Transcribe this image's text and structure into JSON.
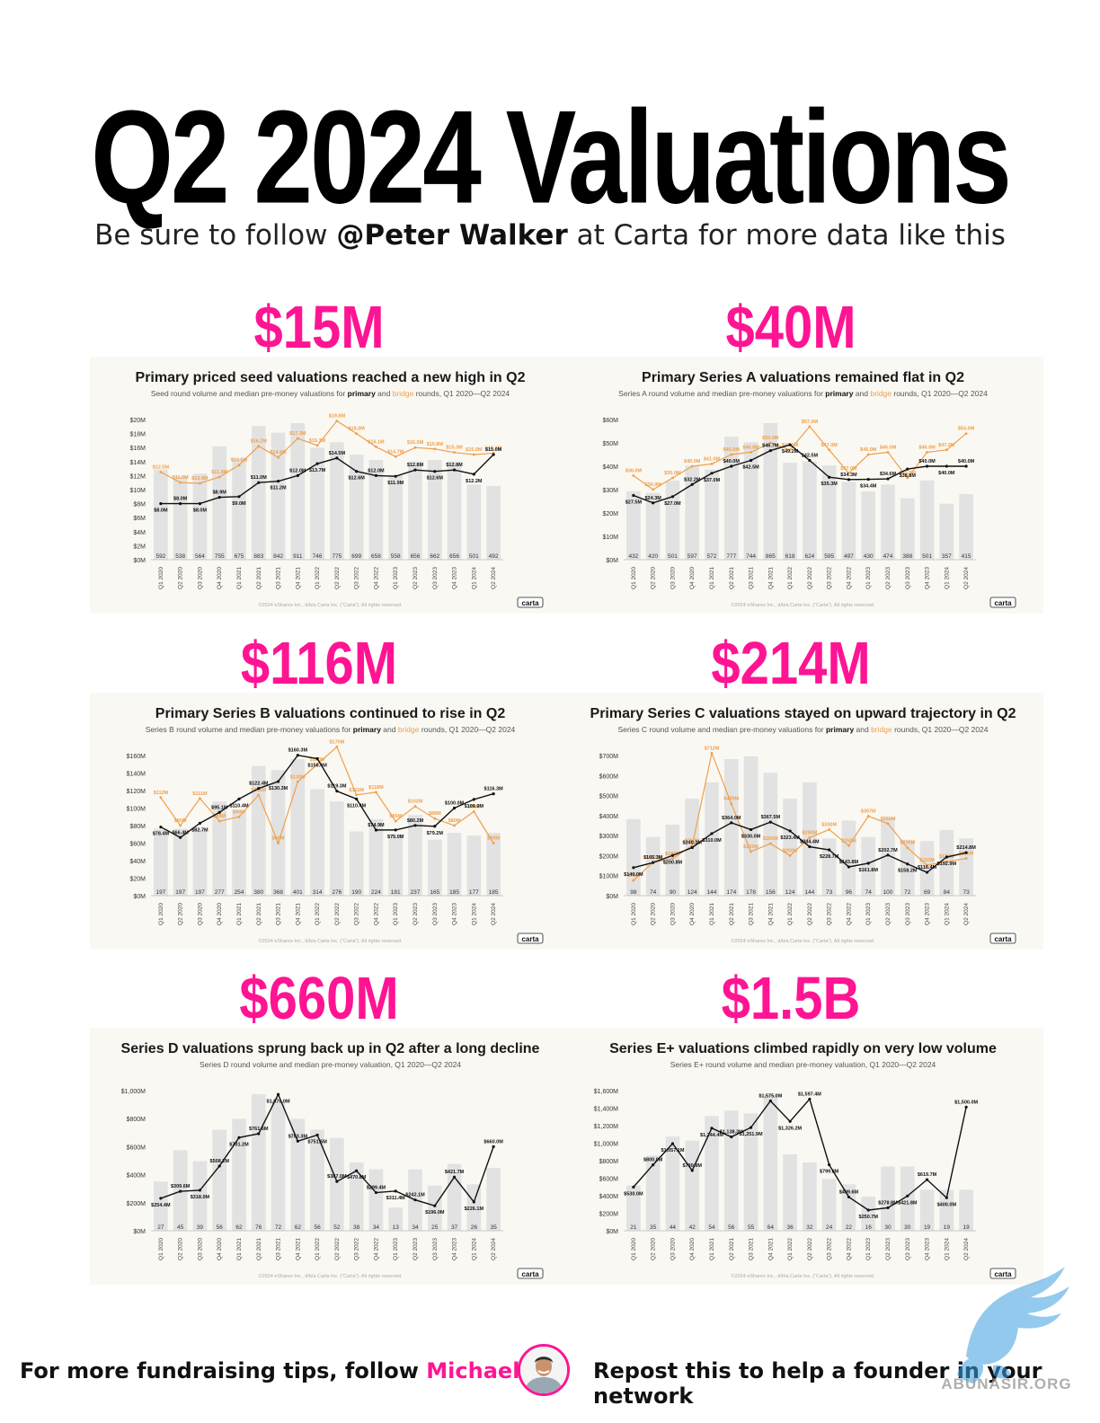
{
  "page": {
    "title": "Q2 2024 Valuations",
    "subtitle_pre": "Be sure to follow ",
    "subtitle_handle": "@Peter Walker",
    "subtitle_post": " at Carta for more data like this",
    "footer_left_pre": "For more fundraising tips, follow ",
    "footer_left_name": "Michael Ho",
    "footer_right": "Repost this to help a founder in your network",
    "watermark_text": "ABUNASIR.ORG",
    "colors": {
      "pink": "#ff1493",
      "primary_line": "#111111",
      "bridge_line": "#f0a04b",
      "bars": "#e2e2e2",
      "card": "#faf8f3"
    }
  },
  "chart_data": [
    {
      "type": "bar",
      "headline": "$15M",
      "title": "Primary priced seed valuations reached a new high in Q2",
      "subtitle_pre": "Seed round volume and median pre-money valuations for ",
      "subtitle_primary": "primary",
      "subtitle_and": " and ",
      "subtitle_bridge": "bridge",
      "subtitle_post": " rounds, Q1 2020—Q2 2024",
      "footer": "©2024 eShares Inc., d/b/a Carta Inc. (“Carta”). All rights reserved.",
      "logo": "carta",
      "categories": [
        "Q1 2020",
        "Q2 2020",
        "Q3 2020",
        "Q4 2020",
        "Q1 2021",
        "Q2 2021",
        "Q3 2021",
        "Q4 2021",
        "Q1 2022",
        "Q2 2022",
        "Q3 2022",
        "Q4 2022",
        "Q1 2023",
        "Q2 2023",
        "Q3 2023",
        "Q4 2023",
        "Q1 2024",
        "Q2 2024"
      ],
      "counts": [
        "592",
        "538",
        "564",
        "755",
        "675",
        "883",
        "842",
        "911",
        "746",
        "775",
        "699",
        "658",
        "558",
        "656",
        "662",
        "656",
        "501",
        "492"
      ],
      "yticks": [
        "$0M",
        "$2M",
        "$4M",
        "$6M",
        "$8M",
        "$10M",
        "$12M",
        "$14M",
        "$16M",
        "$18M",
        "$20M"
      ],
      "ylim": [
        0,
        20
      ],
      "primary": [
        8.0,
        8.0,
        8.0,
        8.9,
        9.0,
        11.0,
        11.2,
        12.0,
        13.7,
        14.5,
        12.6,
        12.0,
        11.9,
        12.8,
        12.6,
        12.8,
        12.2,
        15.0
      ],
      "primary_labels": [
        "$8.0M",
        "$8.0M",
        "$8.0M",
        "$8.9M",
        "$9.0M",
        "$11.0M",
        "$11.2M",
        "$12.0M",
        "$13.7M",
        "$14.5M",
        "$12.6M",
        "$12.0M",
        "$11.9M",
        "$12.8M",
        "$12.6M",
        "$12.8M",
        "$12.2M",
        "$15.0M"
      ],
      "bridge": [
        12.5,
        11.0,
        10.9,
        11.8,
        13.5,
        16.2,
        14.6,
        17.3,
        16.3,
        19.8,
        18.0,
        16.1,
        14.7,
        16.0,
        15.8,
        15.3,
        15.0,
        15.2
      ],
      "bridge_labels": [
        "$12.5M",
        "$11.0M",
        "$10.9M",
        "$11.8M",
        "$13.5M",
        "$16.2M",
        "$14.6M",
        "$17.3M",
        "$16.3M",
        "$19.8M",
        "$18.0M",
        "$16.1M",
        "$14.7M",
        "$16.0M",
        "$15.8M",
        "$15.3M",
        "$15.0M",
        "$15.2M"
      ],
      "volume_rel": [
        0.66,
        0.61,
        0.63,
        0.83,
        0.74,
        0.98,
        0.93,
        1.0,
        0.82,
        0.86,
        0.77,
        0.73,
        0.62,
        0.72,
        0.73,
        0.72,
        0.55,
        0.54
      ]
    },
    {
      "type": "bar",
      "headline": "$40M",
      "title": "Primary Series A valuations remained flat in Q2",
      "subtitle_pre": "Series A round volume and median pre-money valuations for ",
      "subtitle_primary": "primary",
      "subtitle_and": " and ",
      "subtitle_bridge": "bridge",
      "subtitle_post": " rounds, Q1 2020—Q2 2024",
      "footer": "©2024 eShares Inc., d/b/a Carta Inc. (“Carta”). All rights reserved.",
      "logo": "carta",
      "categories": [
        "Q1 2020",
        "Q2 2020",
        "Q3 2020",
        "Q4 2020",
        "Q1 2021",
        "Q2 2021",
        "Q3 2021",
        "Q4 2021",
        "Q1 2022",
        "Q2 2022",
        "Q3 2022",
        "Q4 2022",
        "Q1 2023",
        "Q2 2023",
        "Q3 2023",
        "Q4 2023",
        "Q1 2024",
        "Q2 2024"
      ],
      "counts": [
        "432",
        "420",
        "501",
        "597",
        "572",
        "777",
        "744",
        "865",
        "618",
        "624",
        "595",
        "497",
        "430",
        "474",
        "388",
        "501",
        "357",
        "415"
      ],
      "yticks": [
        "$0M",
        "$10M",
        "$20M",
        "$30M",
        "$40M",
        "$50M",
        "$60M"
      ],
      "ylim": [
        0,
        60
      ],
      "primary": [
        27.5,
        24.3,
        27.0,
        32.2,
        37.0,
        40.0,
        42.5,
        46.7,
        49.2,
        42.5,
        35.3,
        34.3,
        34.4,
        34.6,
        38.8,
        40.0,
        40.0,
        40.0
      ],
      "primary_labels": [
        "$27.5M",
        "$24.3M",
        "$27.0M",
        "$32.2M",
        "$37.0M",
        "$40.0M",
        "$42.5M",
        "$46.7M",
        "$49.2M",
        "$42.5M",
        "$35.3M",
        "$34.3M",
        "$34.4M",
        "$34.6M",
        "$38.8M",
        "$40.0M",
        "$40.0M",
        "$40.0M"
      ],
      "bridge": [
        36.0,
        30.0,
        35.0,
        40.0,
        41.0,
        45.0,
        46.0,
        50.0,
        47.0,
        57.0,
        47.0,
        37.0,
        45.0,
        46.0,
        35.0,
        46.0,
        47.0,
        54.0
      ],
      "bridge_labels": [
        "$36.0M",
        "$30.0M",
        "$35.0M",
        "$40.0M",
        "$41.0M",
        "$45.0M",
        "$46.0M",
        "$50.0M",
        "$47.0M",
        "$57.0M",
        "$47.0M",
        "$37.0M",
        "$45.0M",
        "$46.0M",
        "$35.0M",
        "$46.0M",
        "$47.0M",
        "$54.0M"
      ],
      "volume_rel": [
        0.5,
        0.49,
        0.58,
        0.69,
        0.66,
        0.9,
        0.86,
        1.0,
        0.71,
        0.72,
        0.69,
        0.57,
        0.5,
        0.55,
        0.45,
        0.58,
        0.41,
        0.48
      ]
    },
    {
      "type": "bar",
      "headline": "$116M",
      "title": "Primary Series B valuations continued to rise in Q2",
      "subtitle_pre": "Series B round volume and median pre-money valuations for ",
      "subtitle_primary": "primary",
      "subtitle_and": " and ",
      "subtitle_bridge": "bridge",
      "subtitle_post": " rounds, Q1 2020—Q2 2024",
      "footer": "©2024 eShares Inc., d/b/a Carta Inc. (“Carta”). All rights reserved.",
      "logo": "carta",
      "categories": [
        "Q1 2020",
        "Q2 2020",
        "Q3 2020",
        "Q4 2020",
        "Q1 2021",
        "Q2 2021",
        "Q3 2021",
        "Q4 2021",
        "Q1 2022",
        "Q2 2022",
        "Q3 2022",
        "Q4 2022",
        "Q1 2023",
        "Q2 2023",
        "Q3 2023",
        "Q4 2023",
        "Q1 2024",
        "Q2 2024"
      ],
      "counts": [
        "197",
        "197",
        "197",
        "277",
        "254",
        "380",
        "368",
        "401",
        "314",
        "276",
        "190",
        "224",
        "181",
        "237",
        "165",
        "185",
        "177",
        "185"
      ],
      "yticks": [
        "$0M",
        "$20M",
        "$40M",
        "$60M",
        "$80M",
        "$100M",
        "$120M",
        "$140M",
        "$160M"
      ],
      "ylim": [
        0,
        160
      ],
      "primary": [
        78.4,
        66.4,
        82.7,
        95.1,
        110.4,
        122.4,
        130.3,
        160.3,
        156.4,
        119.3,
        110.4,
        74.9,
        75.0,
        80.2,
        79.2,
        100.0,
        109.9,
        116.3
      ],
      "primary_labels": [
        "$78.4M",
        "$66.4M",
        "$82.7M",
        "$95.1M",
        "$110.4M",
        "$122.4M",
        "$130.3M",
        "$160.3M",
        "$156.4M",
        "$119.3M",
        "$110.4M",
        "$74.9M",
        "$75.0M",
        "$80.2M",
        "$79.2M",
        "$100.0M",
        "$109.9M",
        "$116.3M"
      ],
      "bridge": [
        112,
        80,
        111,
        85,
        90,
        115,
        60,
        130,
        150,
        170,
        115,
        118,
        85,
        102,
        88,
        80,
        96,
        60
      ],
      "bridge_labels": [
        "$112M",
        "$80M",
        "$111M",
        "$85M",
        "$90M",
        "$115M",
        "$60M",
        "$130M",
        "$150M",
        "$170M",
        "$115M",
        "$118M",
        "$85M",
        "$102M",
        "$88M",
        "$80M",
        "$96M",
        "$60M"
      ],
      "volume_rel": [
        0.49,
        0.49,
        0.49,
        0.69,
        0.63,
        0.95,
        0.92,
        1.0,
        0.78,
        0.69,
        0.47,
        0.56,
        0.45,
        0.59,
        0.41,
        0.46,
        0.44,
        0.46
      ]
    },
    {
      "type": "bar",
      "headline": "$214M",
      "title": "Primary Series C valuations stayed on upward trajectory in Q2",
      "subtitle_pre": "Series C round volume and median pre-money valuations for ",
      "subtitle_primary": "primary",
      "subtitle_and": " and ",
      "subtitle_bridge": "bridge",
      "subtitle_post": " rounds, Q1 2020—Q2 2024",
      "footer": "©2024 eShares Inc., d/b/a Carta Inc. (“Carta”). All rights reserved.",
      "logo": "carta",
      "categories": [
        "Q1 2020",
        "Q2 2020",
        "Q3 2020",
        "Q4 2020",
        "Q1 2021",
        "Q2 2021",
        "Q3 2021",
        "Q4 2021",
        "Q1 2022",
        "Q2 2022",
        "Q3 2022",
        "Q4 2022",
        "Q1 2023",
        "Q2 2023",
        "Q3 2023",
        "Q4 2023",
        "Q1 2024",
        "Q2 2024"
      ],
      "counts": [
        "98",
        "74",
        "90",
        "124",
        "144",
        "174",
        "178",
        "156",
        "124",
        "144",
        "73",
        "96",
        "74",
        "100",
        "72",
        "69",
        "84",
        "73"
      ],
      "yticks": [
        "$0M",
        "$100M",
        "$200M",
        "$300M",
        "$400M",
        "$500M",
        "$600M",
        "$700M"
      ],
      "ylim": [
        0,
        700
      ],
      "primary": [
        140.0,
        165.3,
        200.8,
        240.3,
        310.0,
        364.0,
        330.0,
        367.5,
        323.4,
        244.4,
        228.7,
        143.8,
        161.8,
        202.7,
        158.2,
        116.4,
        192.9,
        214.8
      ],
      "primary_labels": [
        "$140.0M",
        "$165.3M",
        "$200.8M",
        "$240.3M",
        "$310.0M",
        "$364.0M",
        "$330.0M",
        "$367.5M",
        "$323.4M",
        "$244.4M",
        "$228.7M",
        "$143.8M",
        "$161.8M",
        "$202.7M",
        "$158.2M",
        "$116.4M",
        "$192.9M",
        "$214.8M"
      ],
      "bridge": [
        76,
        167,
        185,
        250,
        712,
        459,
        220,
        260,
        200,
        290,
        330,
        250,
        397,
        360,
        239,
        152,
        170,
        186
      ],
      "bridge_labels": [
        "$76M",
        "$167M",
        "$185M",
        "$250M",
        "$712M",
        "$459M",
        "$220M",
        "$260M",
        "$200M",
        "$290M",
        "$330M",
        "$250M",
        "$397M",
        "$360M",
        "$239M",
        "$152M",
        "$170M",
        "$186M"
      ],
      "volume_rel": [
        0.56,
        0.43,
        0.52,
        0.71,
        0.83,
        1.0,
        1.02,
        0.9,
        0.71,
        0.83,
        0.42,
        0.55,
        0.43,
        0.57,
        0.41,
        0.4,
        0.48,
        0.42
      ]
    },
    {
      "type": "bar",
      "headline": "$660M",
      "title": "Series D valuations sprung back up in Q2 after a long decline",
      "subtitle_pre": "Series D round volume and median pre-money valuation, Q1 2020—Q2 2024",
      "subtitle_primary": "",
      "subtitle_and": "",
      "subtitle_bridge": "",
      "subtitle_post": "",
      "footer": "©2024 eShares Inc., d/b/a Carta Inc. (“Carta”). All rights reserved.",
      "logo": "carta",
      "categories": [
        "Q1 2020",
        "Q2 2020",
        "Q3 2020",
        "Q4 2020",
        "Q1 2021",
        "Q2 2021",
        "Q3 2021",
        "Q4 2021",
        "Q1 2022",
        "Q2 2022",
        "Q3 2022",
        "Q4 2022",
        "Q1 2023",
        "Q2 2023",
        "Q3 2023",
        "Q4 2023",
        "Q1 2024",
        "Q2 2024"
      ],
      "counts": [
        "27",
        "45",
        "39",
        "56",
        "62",
        "76",
        "72",
        "62",
        "56",
        "52",
        "38",
        "34",
        "13",
        "34",
        "25",
        "37",
        "26",
        "35"
      ],
      "yticks": [
        "$0M",
        "$200M",
        "$400M",
        "$600M",
        "$800M",
        "$1,000M"
      ],
      "ylim": [
        0,
        1100
      ],
      "primary": [
        254.4,
        309.6,
        318.0,
        508.2,
        731.2,
        761.6,
        1070.0,
        703.3,
        751.5,
        387.0,
        470.8,
        299.4,
        311.4,
        242.1,
        196.0,
        421.7,
        226.1,
        660.0
      ],
      "primary_labels": [
        "$254.4M",
        "$309.6M",
        "$318.0M",
        "$508.2M",
        "$731.2M",
        "$761.6M",
        "$1,070.0M",
        "$703.3M",
        "$751.5M",
        "$387.0M",
        "$470.8M",
        "$299.4M",
        "$311.4M",
        "$242.1M",
        "$196.0M",
        "$421.7M",
        "$226.1M",
        "$660.0M"
      ],
      "bridge": [],
      "bridge_labels": [],
      "volume_rel": [
        0.36,
        0.59,
        0.51,
        0.74,
        0.82,
        1.0,
        0.95,
        0.82,
        0.74,
        0.68,
        0.5,
        0.45,
        0.17,
        0.45,
        0.33,
        0.49,
        0.34,
        0.46
      ]
    },
    {
      "type": "bar",
      "headline": "$1.5B",
      "title": "Series E+ valuations climbed rapidly on very low volume",
      "subtitle_pre": "Series E+ round volume and median pre-money valuation, Q1 2020—Q2 2024",
      "subtitle_primary": "",
      "subtitle_and": "",
      "subtitle_bridge": "",
      "subtitle_post": "",
      "footer": "©2024 eShares Inc., d/b/a Carta Inc. (“Carta”). All rights reserved.",
      "logo": "carta",
      "categories": [
        "Q1 2020",
        "Q2 2020",
        "Q3 2020",
        "Q4 2020",
        "Q1 2021",
        "Q2 2021",
        "Q3 2021",
        "Q4 2021",
        "Q1 2022",
        "Q2 2022",
        "Q3 2022",
        "Q4 2022",
        "Q1 2023",
        "Q2 2023",
        "Q3 2023",
        "Q4 2023",
        "Q1 2024",
        "Q2 2024"
      ],
      "counts": [
        "21",
        "35",
        "44",
        "42",
        "54",
        "56",
        "55",
        "64",
        "36",
        "32",
        "24",
        "22",
        "16",
        "30",
        "30",
        "19",
        "19",
        "19"
      ],
      "yticks": [
        "$0M",
        "$200M",
        "$400M",
        "$600M",
        "$800M",
        "$1,000M",
        "$1,200M",
        "$1,400M",
        "$1,600M"
      ],
      "ylim": [
        0,
        1700
      ],
      "primary": [
        530.0,
        800.0,
        1057.1,
        730.9,
        1244.4,
        1138.3,
        1251.9,
        1575.0,
        1326.2,
        1597.4,
        799.8,
        409.6,
        250.7,
        278.8,
        421.8,
        619.7,
        400.0,
        1500.0
      ],
      "primary_labels": [
        "$530.0M",
        "$800.0M",
        "$1,057.1M",
        "$730.9M",
        "$1,244.4M",
        "$1,138.3M",
        "$1,251.9M",
        "$1,575.0M",
        "$1,326.2M",
        "$1,597.4M",
        "$799.8M",
        "$409.6M",
        "$250.7M",
        "$278.8M",
        "$421.8M",
        "$619.7M",
        "$400.0M",
        "$1,500.0M"
      ],
      "bridge": [],
      "bridge_labels": [],
      "volume_rel": [
        0.33,
        0.55,
        0.69,
        0.66,
        0.84,
        0.88,
        0.86,
        1.0,
        0.56,
        0.5,
        0.38,
        0.34,
        0.25,
        0.47,
        0.47,
        0.3,
        0.3,
        0.3
      ]
    }
  ]
}
